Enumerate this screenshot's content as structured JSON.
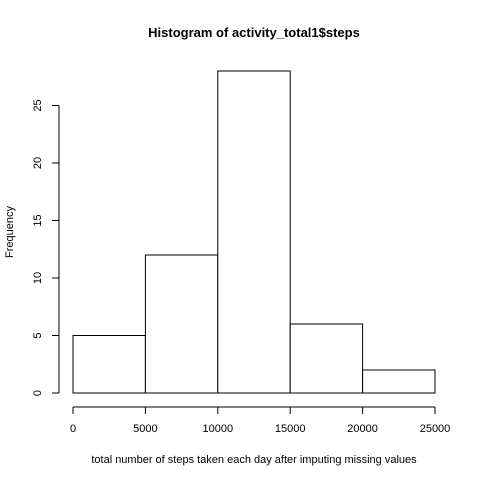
{
  "chart_data": {
    "type": "bar",
    "title": "Histogram of activity_total1$steps",
    "xlabel": "total number of steps taken each day after imputing missing values",
    "ylabel": "Frequency",
    "bins": [
      {
        "from": 0,
        "to": 5000,
        "count": 5
      },
      {
        "from": 5000,
        "to": 10000,
        "count": 12
      },
      {
        "from": 10000,
        "to": 15000,
        "count": 28
      },
      {
        "from": 15000,
        "to": 20000,
        "count": 6
      },
      {
        "from": 20000,
        "to": 25000,
        "count": 2
      }
    ],
    "xlim": [
      0,
      25000
    ],
    "ylim": [
      0,
      28
    ],
    "x_ticks": [
      0,
      5000,
      10000,
      15000,
      20000,
      25000
    ],
    "y_ticks": [
      0,
      5,
      10,
      15,
      20,
      25
    ],
    "x_tick_labels": [
      "0",
      "5000",
      "10000",
      "15000",
      "20000",
      "25000"
    ],
    "y_tick_labels": [
      "0",
      "5",
      "10",
      "15",
      "20",
      "25"
    ],
    "grid": false,
    "legend": "none"
  }
}
